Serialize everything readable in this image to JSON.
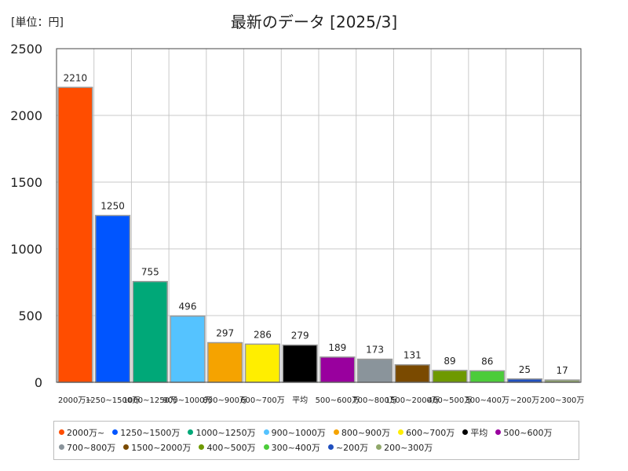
{
  "unit_label": "[単位：円]",
  "chart_data": {
    "type": "bar",
    "title": "最新のデータ [2025/3]",
    "xlabel": "",
    "ylabel": "",
    "ylim": [
      0,
      2500
    ],
    "yticks": [
      0,
      500,
      1000,
      1500,
      2000,
      2500
    ],
    "grid": true,
    "legend_position": "bottom",
    "categories": [
      "2000万~",
      "1250~1500万",
      "1000~1250万",
      "900~1000万",
      "800~900万",
      "600~700万",
      "平均",
      "500~600万",
      "700~800万",
      "1500~2000万",
      "400~500万",
      "300~400万",
      "~200万",
      "200~300万"
    ],
    "values": [
      2210,
      1250,
      755,
      496,
      297,
      286,
      279,
      189,
      173,
      131,
      89,
      86,
      25,
      17
    ],
    "colors": [
      "#ff4d00",
      "#0055ff",
      "#00a878",
      "#55c3ff",
      "#f5a300",
      "#ffee00",
      "#000000",
      "#99009e",
      "#8a949b",
      "#7a4a00",
      "#6e9900",
      "#4ccc3a",
      "#1f4fbf",
      "#90a86a"
    ]
  }
}
